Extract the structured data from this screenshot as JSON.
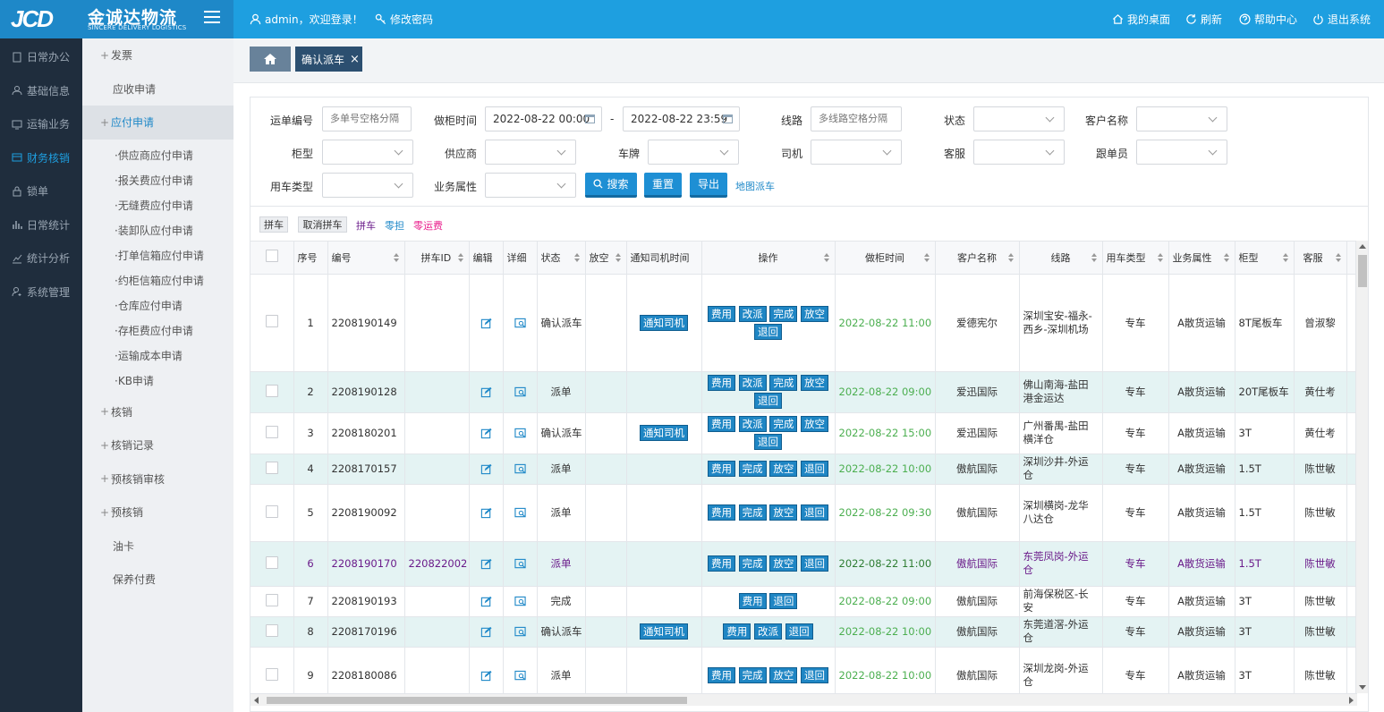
{
  "brand": {
    "logo_mark": "JCD",
    "name": "金诚达物流",
    "sub": "SINCERE DELIVERY LOGISTICS"
  },
  "topbar": {
    "user": "admin，欢迎登录！",
    "change_pwd": "修改密码",
    "desktop": "我的桌面",
    "refresh": "刷新",
    "help": "帮助中心",
    "logout": "退出系统"
  },
  "sidebar": [
    "日常办公",
    "基础信息",
    "运输业务",
    "财务核销",
    "锁单",
    "日常统计",
    "统计分析",
    "系统管理"
  ],
  "submenu": {
    "invoice": "发票",
    "receivable": "应收申请",
    "payable": "应付申请",
    "leaves": [
      "供应商应付申请",
      "报关费应付申请",
      "无缝费应付申请",
      "装卸队应付申请",
      "打单信箱应付申请",
      "约柜信箱应付申请",
      "仓库应付申请",
      "存柜费应付申请",
      "运输成本申请",
      "KB申请"
    ],
    "writeoff": "核销",
    "writeoff_record": "核销记录",
    "pre_audit": "预核销审核",
    "pre_writeoff": "预核销",
    "fuel_card": "油卡",
    "insurance": "保养付费"
  },
  "tab": {
    "label": "确认派车",
    "close": "×"
  },
  "filters": {
    "waybill_label": "运单编号",
    "waybill_ph": "多单号空格分隔",
    "time_label": "做柜时间",
    "time_from": "2022-08-22 00:00",
    "dash": "-",
    "time_to": "2022-08-22 23:59",
    "route_label": "线路",
    "route_ph": "多线路空格分隔",
    "status_label": "状态",
    "customer_label": "客户名称",
    "cabinet_label": "柜型",
    "supplier_label": "供应商",
    "plate_label": "车牌",
    "driver_label": "司机",
    "service_label": "客服",
    "follower_label": "跟单员",
    "vehicle_label": "用车类型",
    "business_label": "业务属性",
    "search": "搜索",
    "reset": "重置",
    "export": "导出",
    "map": "地图派车"
  },
  "toolbar": {
    "combine": "拼车",
    "cancel_combine": "取消拼车",
    "legend_combine": "拼车",
    "legend_partial": "零担",
    "legend_zero": "零运费"
  },
  "colors": {
    "legend_combine": "#6a1b8a",
    "legend_partial": "#1e88c8",
    "legend_zero": "#e91e8c"
  },
  "columns": [
    "序号",
    "编号",
    "拼车ID",
    "编辑",
    "详细",
    "状态",
    "放空",
    "通知司机时间",
    "操作",
    "做柜时间",
    "客户名称",
    "线路",
    "用车类型",
    "业务属性",
    "柜型",
    "客服"
  ],
  "ops": {
    "fee": "费用",
    "reassign": "改派",
    "done": "完成",
    "empty": "放空",
    "back": "退回",
    "notify": "通知司机"
  },
  "rows": [
    {
      "no": "1",
      "code": "2208190149",
      "pid": "",
      "status": "确认派车",
      "notify": true,
      "ops": [
        "fee",
        "reassign",
        "done",
        "empty",
        "back"
      ],
      "time": "2022-08-22 11:00",
      "customer": "爱德宪尔",
      "route": "深圳宝安-福永-西乡-深圳机场",
      "vehicle": "专车",
      "biz": "A散货运输",
      "cab": "8T尾板车",
      "svc": "曾淑黎"
    },
    {
      "no": "2",
      "code": "2208190128",
      "pid": "",
      "status": "派单",
      "notify": false,
      "ops": [
        "fee",
        "reassign",
        "done",
        "empty",
        "back"
      ],
      "time": "2022-08-22 09:00",
      "customer": "爱迅国际",
      "route": "佛山南海-盐田港金运达",
      "vehicle": "专车",
      "biz": "A散货运输",
      "cab": "20T尾板车",
      "svc": "黄仕考"
    },
    {
      "no": "3",
      "code": "2208180201",
      "pid": "",
      "status": "确认派车",
      "notify": true,
      "ops": [
        "fee",
        "reassign",
        "done",
        "empty",
        "back"
      ],
      "time": "2022-08-22 15:00",
      "customer": "爱迅国际",
      "route": "广州番禺-盐田横洋仓",
      "vehicle": "专车",
      "biz": "A散货运输",
      "cab": "3T",
      "svc": "黄仕考"
    },
    {
      "no": "4",
      "code": "2208170157",
      "pid": "",
      "status": "派单",
      "notify": false,
      "ops": [
        "fee",
        "done",
        "empty",
        "back"
      ],
      "time": "2022-08-22 10:00",
      "customer": "傲航国际",
      "route": "深圳沙井-外运仓",
      "vehicle": "专车",
      "biz": "A散货运输",
      "cab": "1.5T",
      "svc": "陈世敏"
    },
    {
      "no": "5",
      "code": "2208190092",
      "pid": "",
      "status": "派单",
      "notify": false,
      "ops": [
        "fee",
        "done",
        "empty",
        "back"
      ],
      "time": "2022-08-22 09:30",
      "customer": "傲航国际",
      "route": "深圳横岗-龙华八达仓",
      "vehicle": "专车",
      "biz": "A散货运输",
      "cab": "1.5T",
      "svc": "陈世敏"
    },
    {
      "no": "6",
      "code": "2208190170",
      "pid": "220822002",
      "status": "派单",
      "notify": false,
      "ops": [
        "fee",
        "done",
        "empty",
        "back"
      ],
      "time": "2022-08-22 11:00",
      "customer": "傲航国际",
      "route": "东莞凤岗-外运仓",
      "vehicle": "专车",
      "biz": "A散货运输",
      "cab": "1.5T",
      "svc": "陈世敏"
    },
    {
      "no": "7",
      "code": "2208190193",
      "pid": "",
      "status": "完成",
      "notify": false,
      "ops": [
        "fee",
        "back"
      ],
      "time": "2022-08-22 09:00",
      "customer": "傲航国际",
      "route": "前海保税区-长安",
      "vehicle": "专车",
      "biz": "A散货运输",
      "cab": "3T",
      "svc": "陈世敏"
    },
    {
      "no": "8",
      "code": "2208170196",
      "pid": "",
      "status": "确认派车",
      "notify": true,
      "ops": [
        "fee",
        "reassign",
        "back"
      ],
      "time": "2022-08-22 10:00",
      "customer": "傲航国际",
      "route": "东莞道滘-外运仓",
      "vehicle": "专车",
      "biz": "A散货运输",
      "cab": "3T",
      "svc": "陈世敏"
    },
    {
      "no": "9",
      "code": "2208180086",
      "pid": "",
      "status": "派单",
      "notify": false,
      "ops": [
        "fee",
        "done",
        "empty",
        "back"
      ],
      "time": "2022-08-22 10:00",
      "customer": "傲航国际",
      "route": "深圳龙岗-外运仓",
      "vehicle": "专车",
      "biz": "A散货运输",
      "cab": "3T",
      "svc": "陈世敏"
    }
  ]
}
